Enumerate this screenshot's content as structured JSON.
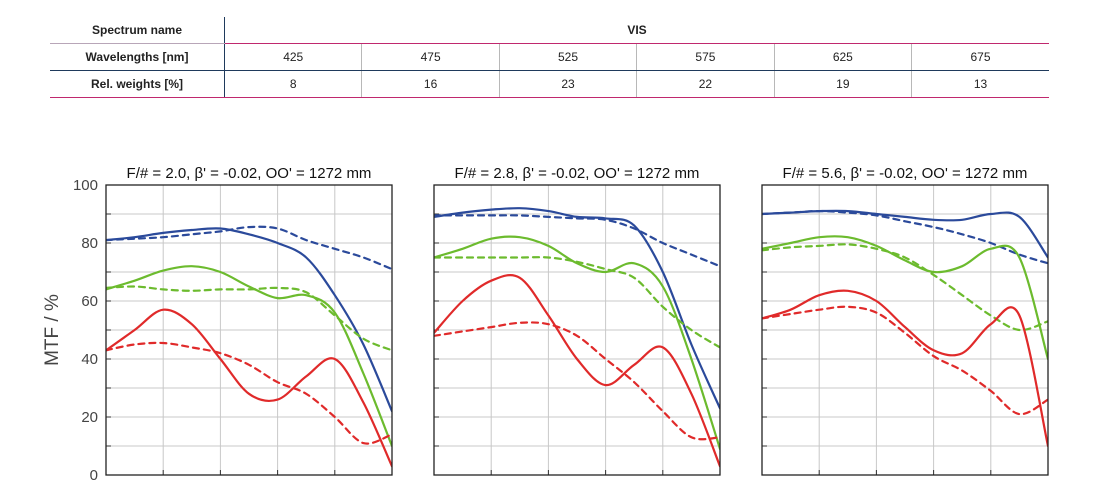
{
  "table": {
    "spectrum_label": "Spectrum name",
    "spectrum_value": "VIS",
    "wavelength_label": "Wavelengths [nm]",
    "wavelengths": [
      "425",
      "475",
      "525",
      "575",
      "625",
      "675"
    ],
    "weights_label": "Rel. weights [%]",
    "weights": [
      "8",
      "16",
      "23",
      "22",
      "19",
      "13"
    ]
  },
  "colors": {
    "blue": "#2b4a9b",
    "green": "#6cbb2e",
    "red": "#e02a2a"
  },
  "chart_data": [
    {
      "type": "line",
      "title": "F/# = 2.0, β' = -0.02, OO' = 1272 mm",
      "ylabel": "MTF / %",
      "ylim": [
        0,
        100
      ],
      "yticks": [
        "0",
        "20",
        "40",
        "60",
        "80",
        "100"
      ],
      "grid": true,
      "x": [
        0,
        0.1,
        0.2,
        0.3,
        0.4,
        0.5,
        0.6,
        0.7,
        0.8,
        0.9,
        1.0
      ],
      "series": [
        {
          "color": "blue",
          "style": "solid",
          "values": [
            81,
            82,
            83.5,
            84.5,
            85,
            83,
            80,
            75,
            62,
            45,
            22
          ]
        },
        {
          "color": "blue",
          "style": "dashed",
          "values": [
            81,
            81.5,
            82,
            83,
            84,
            85.5,
            85,
            81,
            78,
            75,
            71
          ]
        },
        {
          "color": "green",
          "style": "solid",
          "values": [
            64,
            67,
            70.5,
            72,
            70,
            65,
            61,
            62,
            56,
            35,
            10
          ]
        },
        {
          "color": "green",
          "style": "dashed",
          "values": [
            64.5,
            65,
            64,
            63.5,
            64,
            64,
            64.5,
            63,
            55,
            47,
            43
          ]
        },
        {
          "color": "red",
          "style": "solid",
          "values": [
            43,
            50,
            57,
            52,
            40,
            28,
            26,
            34,
            40,
            25,
            3
          ]
        },
        {
          "color": "red",
          "style": "dashed",
          "values": [
            43,
            45,
            45.5,
            44,
            42,
            38,
            32,
            28,
            20,
            11,
            14
          ]
        }
      ]
    },
    {
      "type": "line",
      "title": "F/# = 2.8, β' = -0.02, OO' = 1272 mm",
      "ylim": [
        0,
        100
      ],
      "grid": true,
      "x": [
        0,
        0.1,
        0.2,
        0.3,
        0.4,
        0.5,
        0.6,
        0.7,
        0.8,
        0.9,
        1.0
      ],
      "series": [
        {
          "color": "blue",
          "style": "solid",
          "values": [
            89,
            90.5,
            91.5,
            92,
            91,
            89,
            88.5,
            86,
            70,
            45,
            23
          ]
        },
        {
          "color": "blue",
          "style": "dashed",
          "values": [
            89.5,
            89.5,
            89.5,
            89.5,
            89,
            88.5,
            88,
            85,
            80,
            76,
            72
          ]
        },
        {
          "color": "green",
          "style": "solid",
          "values": [
            75,
            78,
            81.5,
            82,
            79,
            73,
            70,
            73,
            65,
            40,
            9
          ]
        },
        {
          "color": "green",
          "style": "dashed",
          "values": [
            75,
            75,
            75,
            75,
            75,
            73.5,
            71,
            68,
            58,
            50,
            44
          ]
        },
        {
          "color": "red",
          "style": "solid",
          "values": [
            49,
            60,
            67,
            68,
            55,
            40,
            31,
            38,
            44,
            28,
            3
          ]
        },
        {
          "color": "red",
          "style": "dashed",
          "values": [
            48,
            49.5,
            51,
            52.5,
            52,
            48,
            40,
            32,
            22,
            13,
            13
          ]
        }
      ]
    },
    {
      "type": "line",
      "title": "F/# = 5.6, β' = -0.02, OO' = 1272 mm",
      "ylim": [
        0,
        100
      ],
      "grid": true,
      "x": [
        0,
        0.1,
        0.2,
        0.3,
        0.4,
        0.5,
        0.6,
        0.7,
        0.8,
        0.9,
        1.0
      ],
      "series": [
        {
          "color": "blue",
          "style": "solid",
          "values": [
            90,
            90.5,
            91,
            91,
            90,
            89,
            88,
            88,
            90,
            89,
            75
          ]
        },
        {
          "color": "blue",
          "style": "dashed",
          "values": [
            90,
            90.5,
            91,
            90.5,
            89.5,
            87.5,
            85.5,
            83,
            80,
            76,
            73
          ]
        },
        {
          "color": "green",
          "style": "solid",
          "values": [
            78,
            80,
            82,
            82,
            79,
            74,
            70,
            72,
            78,
            75,
            40
          ]
        },
        {
          "color": "green",
          "style": "dashed",
          "values": [
            77.5,
            78.5,
            79,
            79.5,
            78,
            75,
            69,
            62,
            55,
            50,
            53
          ]
        },
        {
          "color": "red",
          "style": "solid",
          "values": [
            54,
            57,
            62,
            63.5,
            60,
            51,
            43,
            42,
            52,
            55,
            10
          ]
        },
        {
          "color": "red",
          "style": "dashed",
          "values": [
            54,
            55.5,
            57,
            58,
            56,
            49,
            41,
            36,
            29,
            21,
            26
          ]
        }
      ]
    }
  ]
}
